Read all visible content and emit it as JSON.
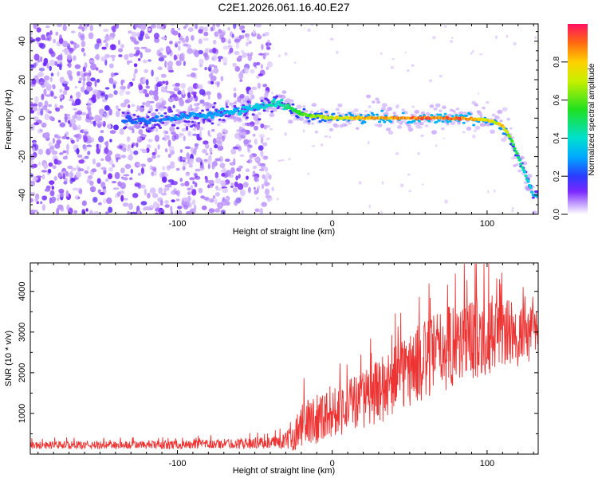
{
  "title": "C2E1.2026.061.16.40.E27",
  "chart_data": [
    {
      "type": "heatmap",
      "xlabel": "Height of straight line (km)",
      "ylabel": "Frequency (Hz)",
      "xlim": [
        -195,
        133
      ],
      "ylim": [
        -50,
        49
      ],
      "xticks": [
        -100,
        0,
        100
      ],
      "yticks": [
        -40,
        -20,
        0,
        20,
        40
      ],
      "colorbar": {
        "label": "Normalized spectral amplitude",
        "range": [
          0,
          1
        ],
        "ticks": [
          0.0,
          0.2,
          0.4,
          0.6,
          0.8
        ],
        "tick_labels": [
          "0.0",
          "0.2",
          "0.4",
          "0.6",
          "0.8"
        ]
      },
      "ridge": {
        "description": "dominant Doppler frequency trace",
        "x": [
          -130,
          -100,
          -80,
          -60,
          -45,
          -40,
          -35,
          -30,
          -20,
          0,
          20,
          40,
          60,
          80,
          100,
          105,
          110,
          115,
          120,
          125,
          130
        ],
        "freq": [
          -1,
          0,
          2,
          4,
          6,
          7,
          8,
          6,
          2,
          0,
          0,
          0,
          0,
          0,
          -1,
          -2,
          -4,
          -10,
          -20,
          -30,
          -40
        ],
        "amplitude": [
          0.25,
          0.3,
          0.32,
          0.35,
          0.4,
          0.45,
          0.4,
          0.5,
          0.6,
          0.75,
          0.85,
          0.9,
          0.95,
          0.95,
          0.8,
          0.75,
          0.8,
          0.6,
          0.5,
          0.4,
          0.35
        ]
      },
      "noise_region_x": [
        -195,
        -40
      ]
    },
    {
      "type": "line",
      "xlabel": "Height of straight line (km)",
      "ylabel": "SNR (10 * v/v)",
      "xlim": [
        -195,
        133
      ],
      "ylim": [
        0,
        4700
      ],
      "xticks": [
        -100,
        0,
        100
      ],
      "yticks": [
        1000,
        2000,
        3000,
        4000
      ],
      "color": "#ee3333",
      "envelope": {
        "x": [
          -195,
          -150,
          -100,
          -60,
          -40,
          -30,
          -25,
          -20,
          -10,
          0,
          10,
          20,
          30,
          40,
          50,
          60,
          70,
          80,
          90,
          100,
          110,
          120,
          125,
          133
        ],
        "mean": [
          220,
          220,
          230,
          260,
          280,
          320,
          450,
          700,
          900,
          1050,
          1200,
          1350,
          1550,
          1800,
          2100,
          2300,
          2550,
          2750,
          2850,
          2950,
          3000,
          2900,
          2950,
          3000
        ],
        "spread": [
          120,
          120,
          130,
          160,
          180,
          260,
          450,
          700,
          800,
          800,
          850,
          900,
          1000,
          1100,
          1200,
          1250,
          1300,
          1350,
          1300,
          1250,
          1100,
          1000,
          900,
          800
        ]
      }
    }
  ],
  "colors": {
    "line": "#ee3333",
    "axis": "#000000"
  }
}
